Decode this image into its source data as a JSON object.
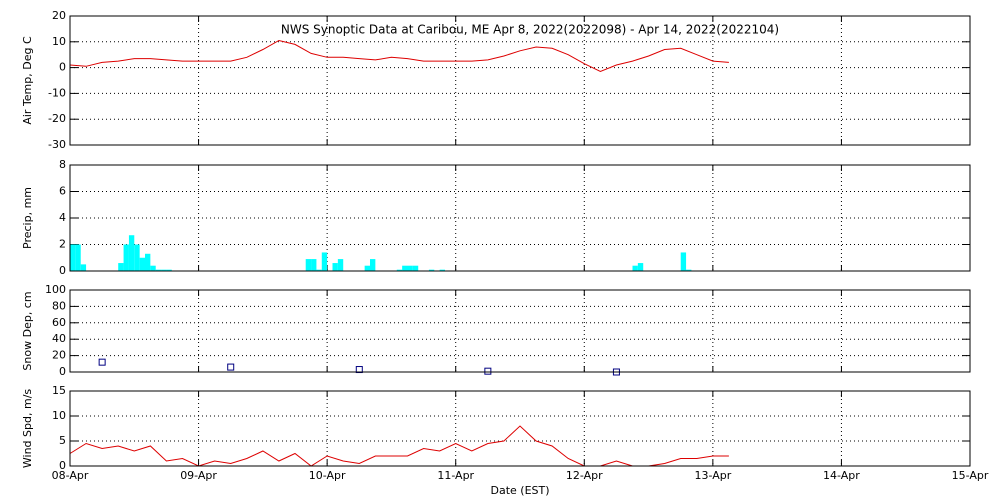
{
  "chart_data": [
    {
      "type": "line",
      "title": "NWS Synoptic Data at Caribou, ME   Apr  8, 2022(2022098) - Apr 14, 2022(2022104)",
      "y_label": "Air Temp, Deg C",
      "color": "#dd0000",
      "x": [
        "2022-04-08T00:00",
        "2022-04-08T03:00",
        "2022-04-08T06:00",
        "2022-04-08T09:00",
        "2022-04-08T12:00",
        "2022-04-08T15:00",
        "2022-04-08T18:00",
        "2022-04-08T21:00",
        "2022-04-09T00:00",
        "2022-04-09T03:00",
        "2022-04-09T06:00",
        "2022-04-09T09:00",
        "2022-04-09T12:00",
        "2022-04-09T15:00",
        "2022-04-09T18:00",
        "2022-04-09T21:00",
        "2022-04-10T00:00",
        "2022-04-10T03:00",
        "2022-04-10T06:00",
        "2022-04-10T09:00",
        "2022-04-10T12:00",
        "2022-04-10T15:00",
        "2022-04-10T18:00",
        "2022-04-10T21:00",
        "2022-04-11T00:00",
        "2022-04-11T03:00",
        "2022-04-11T06:00",
        "2022-04-11T09:00",
        "2022-04-11T12:00",
        "2022-04-11T15:00",
        "2022-04-11T18:00",
        "2022-04-11T21:00",
        "2022-04-12T00:00",
        "2022-04-12T03:00",
        "2022-04-12T06:00",
        "2022-04-12T09:00",
        "2022-04-12T12:00",
        "2022-04-12T15:00",
        "2022-04-12T18:00",
        "2022-04-12T21:00",
        "2022-04-13T00:00",
        "2022-04-13T03:00"
      ],
      "values": [
        1,
        0.5,
        2,
        2.5,
        3.5,
        3.5,
        3,
        2.5,
        2.5,
        2.5,
        2.5,
        4,
        7,
        10.5,
        9,
        5.5,
        4,
        4,
        3.5,
        3,
        4,
        3.5,
        2.5,
        2.5,
        2.5,
        2.5,
        3,
        4.5,
        6.5,
        8,
        7.5,
        5,
        1.5,
        -1.5,
        1,
        2.5,
        4.5,
        7,
        7.5,
        5,
        2.5,
        2
      ],
      "ylim": [
        -30,
        20
      ],
      "yticks": [
        -30,
        -20,
        -10,
        0,
        10,
        20
      ],
      "grid": true
    },
    {
      "type": "bar",
      "y_label": "Precip, mm",
      "color": "#00ffff",
      "x": [
        "2022-04-08T00:00",
        "2022-04-08T01:00",
        "2022-04-08T02:00",
        "2022-04-08T09:00",
        "2022-04-08T10:00",
        "2022-04-08T11:00",
        "2022-04-08T12:00",
        "2022-04-08T13:00",
        "2022-04-08T14:00",
        "2022-04-08T15:00",
        "2022-04-08T16:00",
        "2022-04-08T17:00",
        "2022-04-08T18:00",
        "2022-04-09T20:00",
        "2022-04-09T21:00",
        "2022-04-09T22:00",
        "2022-04-09T23:00",
        "2022-04-10T01:00",
        "2022-04-10T02:00",
        "2022-04-10T07:00",
        "2022-04-10T08:00",
        "2022-04-10T13:00",
        "2022-04-10T14:00",
        "2022-04-10T15:00",
        "2022-04-10T16:00",
        "2022-04-10T19:00",
        "2022-04-10T21:00",
        "2022-04-12T09:00",
        "2022-04-12T10:00",
        "2022-04-12T18:00",
        "2022-04-12T19:00"
      ],
      "values": [
        2.0,
        2.0,
        0.5,
        0.6,
        2.0,
        2.7,
        2.0,
        1.0,
        1.3,
        0.4,
        0.1,
        0.1,
        0.1,
        0.9,
        0.9,
        0.1,
        1.4,
        0.6,
        0.9,
        0.4,
        0.9,
        0.1,
        0.4,
        0.4,
        0.4,
        0.1,
        0.1,
        0.4,
        0.6,
        1.4,
        0.1
      ],
      "ylim": [
        0,
        8
      ],
      "yticks": [
        0,
        2,
        4,
        6,
        8
      ],
      "grid": true
    },
    {
      "type": "scatter",
      "y_label": "Snow Dep, cm",
      "color": "#000080",
      "x": [
        "2022-04-08T06:00",
        "2022-04-09T06:00",
        "2022-04-10T06:00",
        "2022-04-11T06:00",
        "2022-04-12T06:00"
      ],
      "values": [
        12,
        6,
        3,
        1,
        0
      ],
      "ylim": [
        0,
        100
      ],
      "yticks": [
        0,
        20,
        40,
        60,
        80,
        100
      ],
      "grid": true
    },
    {
      "type": "line",
      "y_label": "Wind Spd, m/s",
      "x_label": "Date (EST)",
      "color": "#dd0000",
      "x": [
        "2022-04-08T00:00",
        "2022-04-08T03:00",
        "2022-04-08T06:00",
        "2022-04-08T09:00",
        "2022-04-08T12:00",
        "2022-04-08T15:00",
        "2022-04-08T18:00",
        "2022-04-08T21:00",
        "2022-04-09T00:00",
        "2022-04-09T03:00",
        "2022-04-09T06:00",
        "2022-04-09T09:00",
        "2022-04-09T12:00",
        "2022-04-09T15:00",
        "2022-04-09T18:00",
        "2022-04-09T21:00",
        "2022-04-10T00:00",
        "2022-04-10T03:00",
        "2022-04-10T06:00",
        "2022-04-10T09:00",
        "2022-04-10T12:00",
        "2022-04-10T15:00",
        "2022-04-10T18:00",
        "2022-04-10T21:00",
        "2022-04-11T00:00",
        "2022-04-11T03:00",
        "2022-04-11T06:00",
        "2022-04-11T09:00",
        "2022-04-11T12:00",
        "2022-04-11T15:00",
        "2022-04-11T18:00",
        "2022-04-11T21:00",
        "2022-04-12T00:00",
        "2022-04-12T03:00",
        "2022-04-12T06:00",
        "2022-04-12T09:00",
        "2022-04-12T12:00",
        "2022-04-12T15:00",
        "2022-04-12T18:00",
        "2022-04-12T21:00",
        "2022-04-13T00:00",
        "2022-04-13T03:00"
      ],
      "values": [
        2.5,
        4.5,
        3.5,
        4,
        3,
        4,
        1,
        1.5,
        0,
        1,
        0.5,
        1.5,
        3,
        1,
        2.5,
        0,
        2,
        1,
        0.5,
        2,
        2,
        2,
        3.5,
        3,
        4.5,
        3,
        4.5,
        5,
        8,
        5,
        4,
        1.5,
        0,
        0,
        1,
        0,
        0,
        0.5,
        1.5,
        1.5,
        2,
        2
      ],
      "ylim": [
        0,
        15
      ],
      "yticks": [
        0,
        5,
        10,
        15
      ],
      "grid": true,
      "xlim": [
        "2022-04-08T00:00",
        "2022-04-15T00:00"
      ],
      "xticks": [
        {
          "value": "2022-04-08T00:00",
          "label": "08-Apr"
        },
        {
          "value": "2022-04-09T00:00",
          "label": "09-Apr"
        },
        {
          "value": "2022-04-10T00:00",
          "label": "10-Apr"
        },
        {
          "value": "2022-04-11T00:00",
          "label": "11-Apr"
        },
        {
          "value": "2022-04-12T00:00",
          "label": "12-Apr"
        },
        {
          "value": "2022-04-13T00:00",
          "label": "13-Apr"
        },
        {
          "value": "2022-04-14T00:00",
          "label": "14-Apr"
        },
        {
          "value": "2022-04-15T00:00",
          "label": "15-Apr"
        }
      ]
    }
  ]
}
